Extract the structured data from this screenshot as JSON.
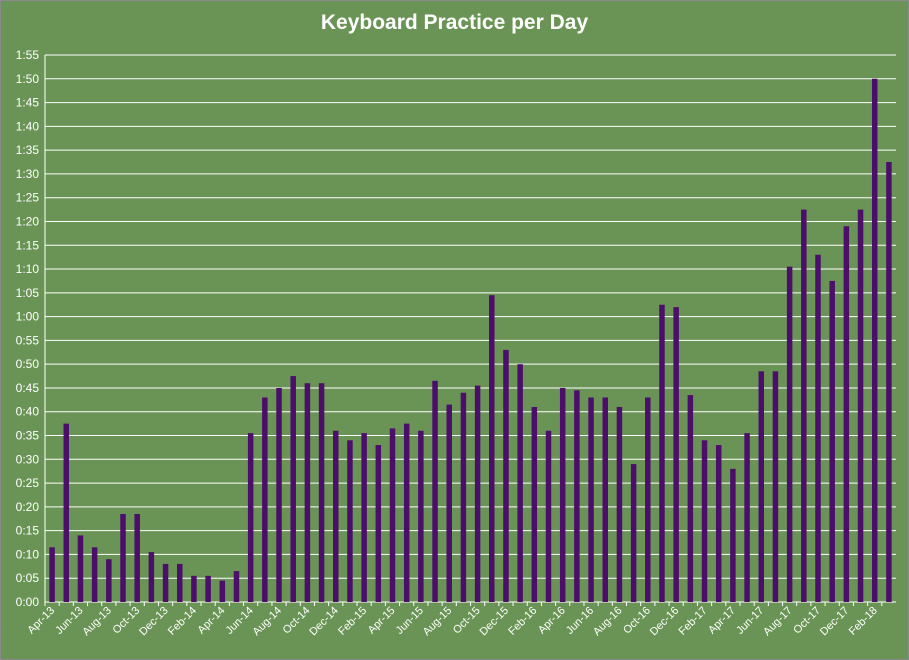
{
  "colors": {
    "background": "#6a9455",
    "bar": "#4b0f6b",
    "grid": "#ffffff",
    "text": "#ffffff"
  },
  "chart_data": {
    "type": "bar",
    "title": "Keyboard Practice per Day",
    "xlabel": "",
    "ylabel": "",
    "grid": true,
    "legend": "none",
    "y_unit": "minutes",
    "ylim": [
      0,
      115
    ],
    "y_ticks": [
      {
        "value": 0,
        "label": "0:00"
      },
      {
        "value": 5,
        "label": "0:05"
      },
      {
        "value": 10,
        "label": "0:10"
      },
      {
        "value": 15,
        "label": "0:15"
      },
      {
        "value": 20,
        "label": "0:20"
      },
      {
        "value": 25,
        "label": "0:25"
      },
      {
        "value": 30,
        "label": "0:30"
      },
      {
        "value": 35,
        "label": "0:35"
      },
      {
        "value": 40,
        "label": "0:40"
      },
      {
        "value": 45,
        "label": "0:45"
      },
      {
        "value": 50,
        "label": "0:50"
      },
      {
        "value": 55,
        "label": "0:55"
      },
      {
        "value": 60,
        "label": "1:00"
      },
      {
        "value": 65,
        "label": "1:05"
      },
      {
        "value": 70,
        "label": "1:10"
      },
      {
        "value": 75,
        "label": "1:15"
      },
      {
        "value": 80,
        "label": "1:20"
      },
      {
        "value": 85,
        "label": "1:25"
      },
      {
        "value": 90,
        "label": "1:30"
      },
      {
        "value": 95,
        "label": "1:35"
      },
      {
        "value": 100,
        "label": "1:40"
      },
      {
        "value": 105,
        "label": "1:45"
      },
      {
        "value": 110,
        "label": "1:50"
      },
      {
        "value": 115,
        "label": "1:55"
      }
    ],
    "categories": [
      "Apr-13",
      "May-13",
      "Jun-13",
      "Jul-13",
      "Aug-13",
      "Sep-13",
      "Oct-13",
      "Nov-13",
      "Dec-13",
      "Jan-14",
      "Feb-14",
      "Mar-14",
      "Apr-14",
      "May-14",
      "Jun-14",
      "Jul-14",
      "Aug-14",
      "Sep-14",
      "Oct-14",
      "Nov-14",
      "Dec-14",
      "Jan-15",
      "Feb-15",
      "Mar-15",
      "Apr-15",
      "May-15",
      "Jun-15",
      "Jul-15",
      "Aug-15",
      "Sep-15",
      "Oct-15",
      "Nov-15",
      "Dec-15",
      "Jan-16",
      "Feb-16",
      "Mar-16",
      "Apr-16",
      "May-16",
      "Jun-16",
      "Jul-16",
      "Aug-16",
      "Sep-16",
      "Oct-16",
      "Nov-16",
      "Dec-16",
      "Jan-17",
      "Feb-17",
      "Mar-17",
      "Apr-17",
      "May-17",
      "Jun-17",
      "Jul-17",
      "Aug-17",
      "Sep-17",
      "Oct-17",
      "Nov-17",
      "Dec-17",
      "Jan-18",
      "Feb-18",
      "Mar-18"
    ],
    "x_tick_labels": [
      "Apr-13",
      "Jun-13",
      "Aug-13",
      "Oct-13",
      "Dec-13",
      "Feb-14",
      "Apr-14",
      "Jun-14",
      "Aug-14",
      "Oct-14",
      "Dec-14",
      "Feb-15",
      "Apr-15",
      "Jun-15",
      "Aug-15",
      "Oct-15",
      "Dec-15",
      "Feb-16",
      "Apr-16",
      "Jun-16",
      "Aug-16",
      "Oct-16",
      "Dec-16",
      "Feb-17",
      "Apr-17",
      "Jun-17",
      "Aug-17",
      "Oct-17",
      "Dec-17",
      "Feb-18"
    ],
    "values": [
      11.5,
      37.5,
      14,
      11.5,
      9,
      18.5,
      18.5,
      10.5,
      8,
      8,
      5.5,
      5.5,
      4.5,
      6.5,
      35.5,
      43,
      45,
      47.5,
      46,
      46,
      36,
      34,
      35.5,
      33,
      36.5,
      37.5,
      36,
      46.5,
      41.5,
      44,
      45.5,
      64.5,
      53,
      50,
      41,
      36,
      45,
      44.5,
      43,
      43,
      41,
      29,
      43,
      62.5,
      62,
      43.5,
      34,
      33,
      28,
      35.5,
      48.5,
      48.5,
      70.5,
      82.5,
      73,
      67.5,
      79,
      82.5,
      110,
      92.5
    ]
  }
}
